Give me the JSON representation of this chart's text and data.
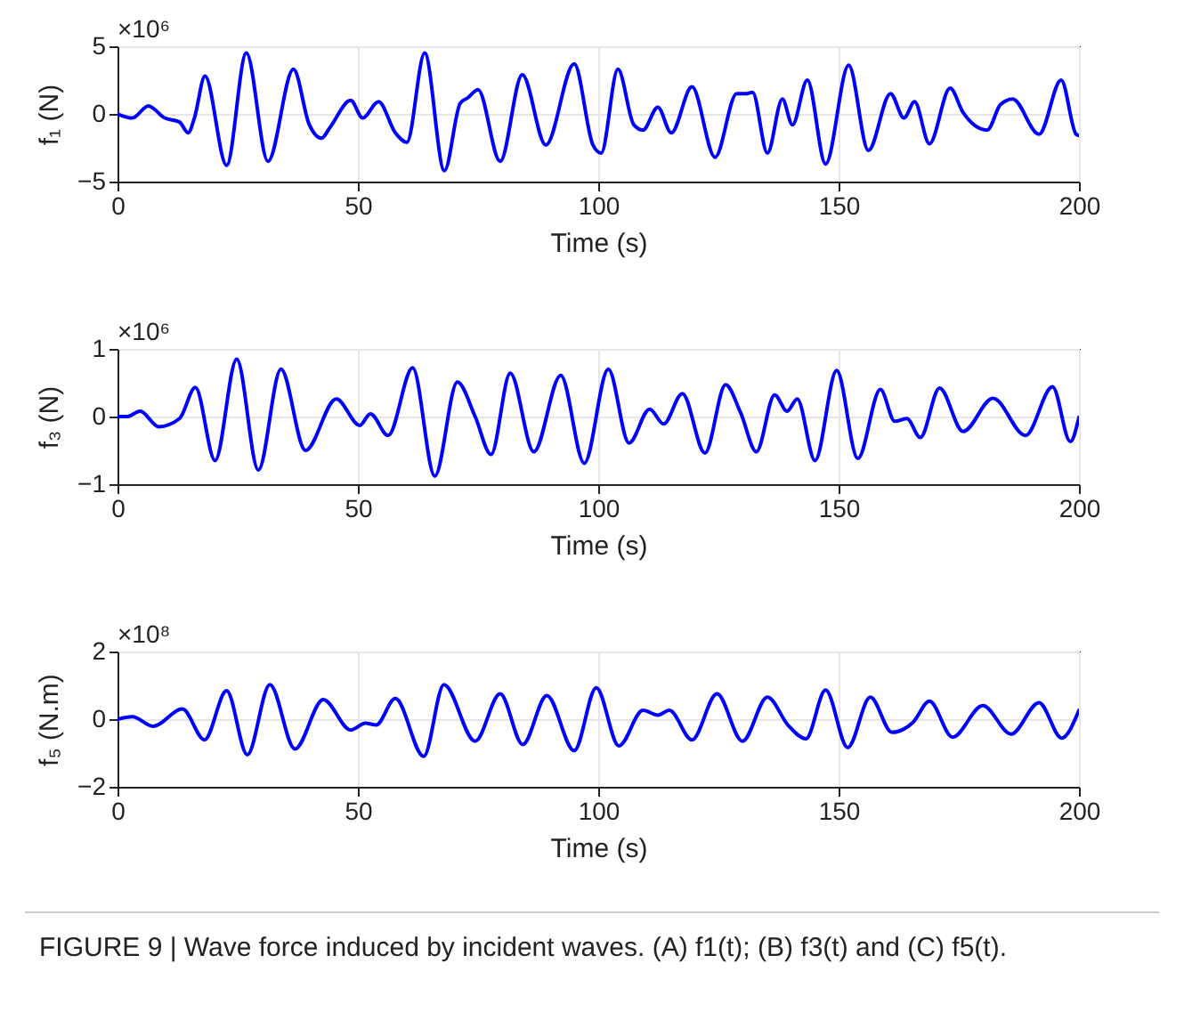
{
  "chart_data": [
    {
      "type": "line",
      "xlabel": "Time (s)",
      "ylabel": "f₁ (N)",
      "annotations": [
        "×10⁶"
      ],
      "xlim": [
        0,
        200
      ],
      "ylim": [
        -5,
        5
      ],
      "xticks": [
        0,
        50,
        100,
        150,
        200
      ],
      "yticks": [
        -5,
        0,
        5
      ],
      "grid": true,
      "line_style": "solid",
      "marker": "none",
      "x": [
        0,
        3.1,
        6.4,
        9.8,
        12.9,
        14.7,
        16,
        18.2,
        22.7,
        26.8,
        31.3,
        36.6,
        39.9,
        42.4,
        44.2,
        48.5,
        51,
        54.3,
        57.8,
        60.2,
        63.9,
        68,
        71.3,
        72.9,
        75,
        79.6,
        84.2,
        89.1,
        95,
        98.9,
        100.6,
        104.1,
        107.4,
        109.3,
        112.4,
        115.2,
        119.5,
        124.3,
        128.8,
        130.9,
        132.1,
        135.2,
        138.3,
        140.4,
        143.5,
        147.3,
        152.1,
        156.2,
        160.8,
        163.6,
        165.8,
        168.9,
        173.2,
        175.9,
        180.9,
        183.7,
        186.2,
        191.7,
        196.3,
        199.4,
        200
      ],
      "series": [
        {
          "color": "#0000ff",
          "values": [
            0,
            -0.3,
            0.6,
            -0.3,
            -0.6,
            -1.4,
            -0.3,
            2.8,
            -3.8,
            4.5,
            -3.5,
            3.3,
            -0.8,
            -1.8,
            -1,
            1.0,
            -0.3,
            0.9,
            -1.4,
            -2.1,
            4.5,
            -4.2,
            0.8,
            1.2,
            1.8,
            -3.5,
            2.9,
            -2.3,
            3.7,
            -2.3,
            -2.9,
            3.3,
            -0.8,
            -1.2,
            0.5,
            -1.4,
            2.0,
            -3.2,
            1.5,
            1.5,
            1.6,
            -2.9,
            1.1,
            -0.8,
            2.5,
            -3.7,
            3.6,
            -2.7,
            1.5,
            -0.3,
            0.9,
            -2.2,
            1.9,
            0.1,
            -1.2,
            0.7,
            1.1,
            -1.5,
            2.5,
            -1.5,
            -1.6
          ]
        }
      ]
    },
    {
      "type": "line",
      "xlabel": "Time (s)",
      "ylabel": "f₃ (N)",
      "annotations": [
        "×10⁶"
      ],
      "xlim": [
        0,
        200
      ],
      "ylim": [
        -1,
        1
      ],
      "xticks": [
        0,
        50,
        100,
        150,
        200
      ],
      "yticks": [
        -1,
        0,
        1
      ],
      "grid": true,
      "line_style": "solid",
      "marker": "none",
      "x": [
        0,
        2,
        4.7,
        8.6,
        12.9,
        16.2,
        20.3,
        24.8,
        29.3,
        34,
        39.1,
        45.5,
        50.4,
        52.6,
        56.3,
        61.4,
        66,
        70.7,
        74.4,
        77.7,
        81.7,
        86.6,
        92.2,
        97.1,
        102.1,
        106.4,
        110.7,
        113.6,
        117.5,
        122.2,
        126.5,
        129.6,
        132.9,
        136.7,
        139.3,
        141.4,
        145.1,
        149.6,
        154,
        158.7,
        161.7,
        164.2,
        167,
        171,
        175.9,
        182.1,
        188.9,
        194.5,
        198.2,
        200
      ],
      "series": [
        {
          "color": "#0000ff",
          "values": [
            0,
            0,
            0.08,
            -0.15,
            -0.03,
            0.43,
            -0.65,
            0.85,
            -0.79,
            0.7,
            -0.5,
            0.26,
            -0.13,
            0.04,
            -0.28,
            0.72,
            -0.88,
            0.51,
            0,
            -0.56,
            0.64,
            -0.52,
            0.61,
            -0.69,
            0.7,
            -0.39,
            0.11,
            -0.11,
            0.34,
            -0.54,
            0.47,
            0.06,
            -0.52,
            0.32,
            0.08,
            0.26,
            -0.65,
            0.68,
            -0.62,
            0.4,
            -0.07,
            -0.03,
            -0.31,
            0.42,
            -0.22,
            0.27,
            -0.28,
            0.44,
            -0.37,
            -0.01
          ]
        }
      ]
    },
    {
      "type": "line",
      "xlabel": "Time (s)",
      "ylabel": "f₅ (N.m)",
      "annotations": [
        "×10⁸",
        "FIGURE 9 | Wave force induced by incident waves. (A) f1(t); (B) f3(t) and (C) f5(t)."
      ],
      "xlim": [
        0,
        200
      ],
      "ylim": [
        -2,
        2
      ],
      "xticks": [
        0,
        50,
        100,
        150,
        200
      ],
      "yticks": [
        -2,
        0,
        2
      ],
      "grid": true,
      "line_style": "solid",
      "marker": "none",
      "x": [
        0,
        3.1,
        7.4,
        13.5,
        18.1,
        22.7,
        27,
        31.7,
        36.9,
        42.8,
        48.5,
        51.6,
        53.8,
        57.8,
        63.7,
        67.9,
        74.4,
        79.6,
        84.3,
        89.3,
        95,
        99.6,
        104.3,
        109.3,
        112.4,
        114.8,
        119.5,
        124.7,
        130,
        135.2,
        139.5,
        143.2,
        147.3,
        151.9,
        156.6,
        161.1,
        165.5,
        168.9,
        173.7,
        180,
        185.9,
        191.7,
        196.4,
        200
      ],
      "series": [
        {
          "color": "#0000ff",
          "values": [
            0,
            0.07,
            -0.21,
            0.3,
            -0.61,
            0.84,
            -1.05,
            1.02,
            -0.88,
            0.58,
            -0.32,
            -0.12,
            -0.17,
            0.61,
            -1.1,
            1.02,
            -0.65,
            0.75,
            -0.75,
            0.7,
            -0.93,
            0.93,
            -0.79,
            0.26,
            0.12,
            0.26,
            -0.61,
            0.75,
            -0.65,
            0.65,
            -0.18,
            -0.58,
            0.86,
            -0.84,
            0.65,
            -0.39,
            -0.09,
            0.53,
            -0.53,
            0.4,
            -0.44,
            0.49,
            -0.56,
            0.26
          ]
        }
      ]
    }
  ]
}
